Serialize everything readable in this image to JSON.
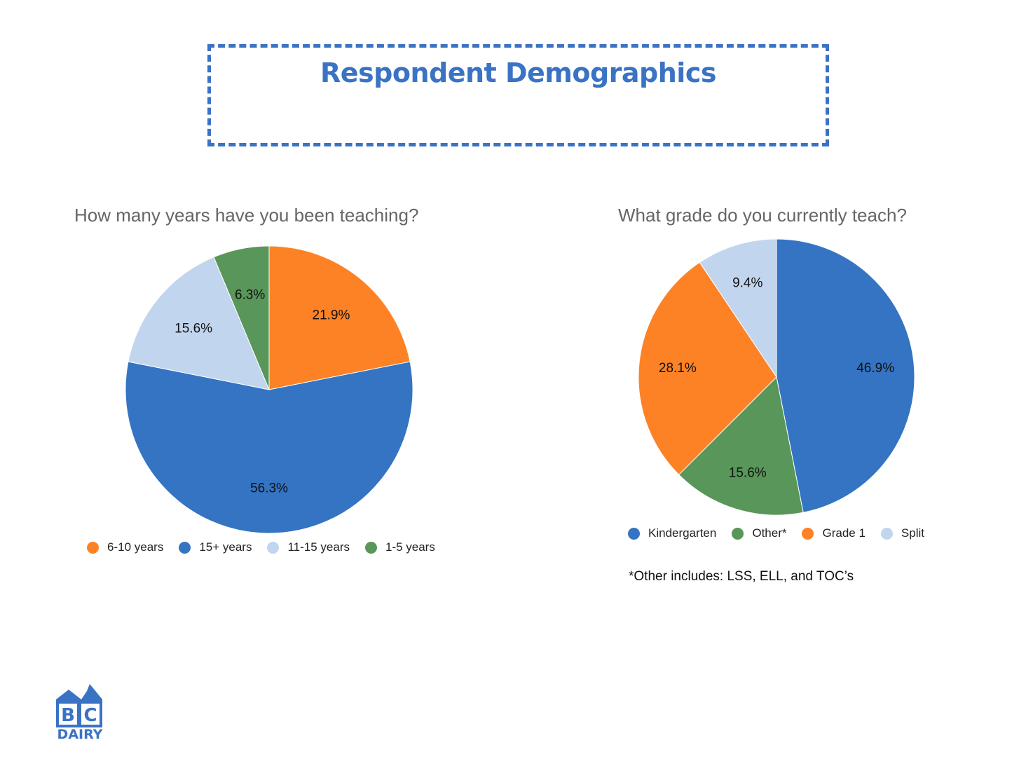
{
  "header": {
    "title": "Respondent Demographics"
  },
  "chart_data": [
    {
      "type": "pie",
      "title": "How many years have you been teaching?",
      "slices": [
        {
          "label": "6-10 years",
          "value": 21.9,
          "display": "21.9%",
          "color": "#fd8225"
        },
        {
          "label": "15+ years",
          "value": 56.3,
          "display": "56.3%",
          "color": "#3474c2"
        },
        {
          "label": "11-15 years",
          "value": 15.6,
          "display": "15.6%",
          "color": "#c2d5ee"
        },
        {
          "label": "1-5 years",
          "value": 6.3,
          "display": "6.3%",
          "color": "#589659"
        }
      ],
      "legend_position": "bottom"
    },
    {
      "type": "pie",
      "title": "What grade do you currently teach?",
      "slices": [
        {
          "label": "Kindergarten",
          "value": 46.9,
          "display": "46.9%",
          "color": "#3474c2"
        },
        {
          "label": "Other*",
          "value": 15.6,
          "display": "15.6%",
          "color": "#589659"
        },
        {
          "label": "Grade 1",
          "value": 28.1,
          "display": "28.1%",
          "color": "#fd8225"
        },
        {
          "label": "Split",
          "value": 9.4,
          "display": "9.4%",
          "color": "#c2d5ee"
        }
      ],
      "legend_position": "bottom"
    }
  ],
  "footnote": "*Other includes: LSS, ELL, and TOC’s",
  "logo": {
    "letters": "BC",
    "word": "DAIRY",
    "color": "#3a73c4"
  }
}
